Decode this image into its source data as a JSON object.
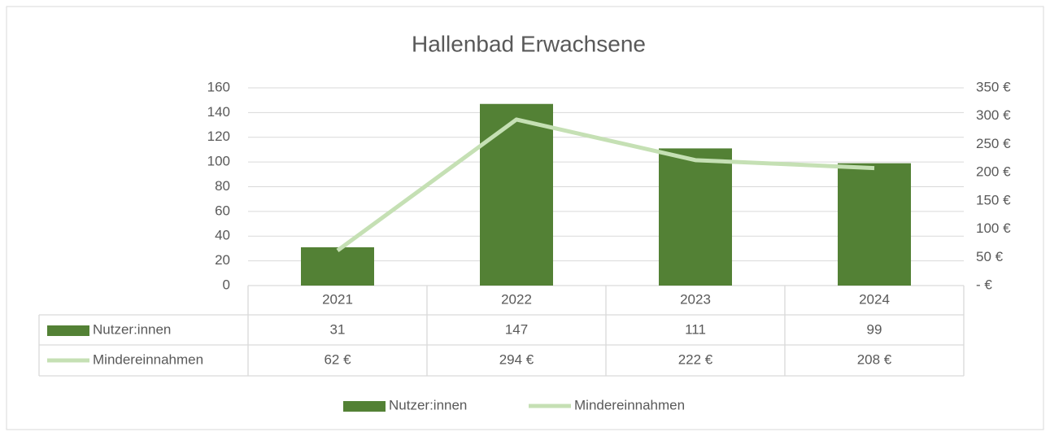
{
  "chart_data": {
    "type": "bar-line",
    "title": "Hallenbad Erwachsene",
    "categories": [
      "2021",
      "2022",
      "2023",
      "2024"
    ],
    "series": [
      {
        "name": "Nutzer:innen",
        "type": "bar",
        "color": "#538135",
        "values": [
          31,
          147,
          111,
          99
        ]
      },
      {
        "name": "Mindereinnahmen",
        "type": "line",
        "color": "#c5e0b4",
        "axis": "y2",
        "values": [
          62,
          294,
          222,
          208
        ],
        "value_labels": [
          "62 €",
          "294 €",
          "222 €",
          "208 €"
        ]
      }
    ],
    "ylim": [
      0,
      160
    ],
    "yticks": [
      0,
      20,
      40,
      60,
      80,
      100,
      120,
      140,
      160
    ],
    "y2lim": [
      0,
      350
    ],
    "y2ticks": [
      {
        "value": 0,
        "label": "-   €"
      },
      {
        "value": 50,
        "label": "50 €"
      },
      {
        "value": 100,
        "label": "100 €"
      },
      {
        "value": 150,
        "label": "150 €"
      },
      {
        "value": 200,
        "label": "200 €"
      },
      {
        "value": 250,
        "label": "250 €"
      },
      {
        "value": 300,
        "label": "300 €"
      },
      {
        "value": 350,
        "label": "350 €"
      }
    ],
    "grid": true,
    "legend": "bottom",
    "data_table": true
  }
}
